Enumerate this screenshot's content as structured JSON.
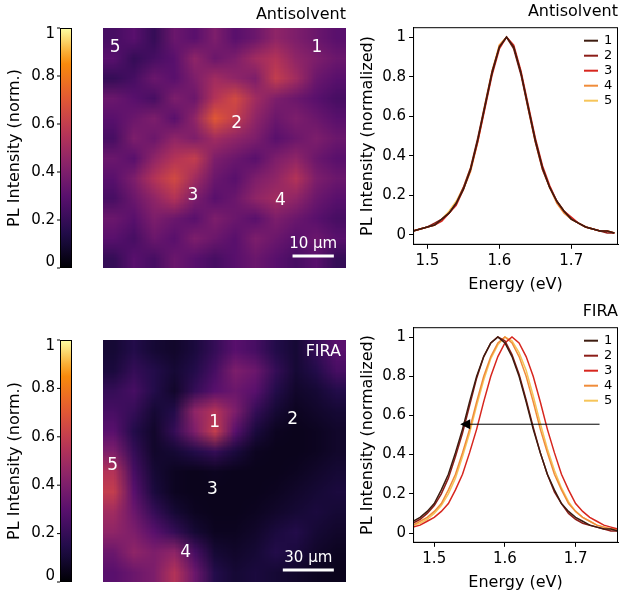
{
  "chart_data": [
    {
      "type": "heatmap",
      "title": "Antisolvent",
      "cells": [
        [
          0.25,
          0.3,
          0.2,
          0.35,
          0.3,
          0.4,
          0.3,
          0.35,
          0.45,
          0.4,
          0.35,
          0.3
        ],
        [
          0.3,
          0.2,
          0.25,
          0.3,
          0.45,
          0.35,
          0.4,
          0.5,
          0.55,
          0.45,
          0.4,
          0.35
        ],
        [
          0.2,
          0.25,
          0.35,
          0.3,
          0.4,
          0.5,
          0.45,
          0.4,
          0.6,
          0.5,
          0.35,
          0.3
        ],
        [
          0.35,
          0.3,
          0.25,
          0.4,
          0.35,
          0.55,
          0.65,
          0.5,
          0.4,
          0.35,
          0.3,
          0.25
        ],
        [
          0.3,
          0.35,
          0.4,
          0.3,
          0.45,
          0.7,
          0.6,
          0.45,
          0.35,
          0.4,
          0.35,
          0.3
        ],
        [
          0.25,
          0.4,
          0.35,
          0.45,
          0.4,
          0.5,
          0.45,
          0.4,
          0.3,
          0.35,
          0.4,
          0.35
        ],
        [
          0.35,
          0.3,
          0.45,
          0.55,
          0.6,
          0.4,
          0.35,
          0.3,
          0.4,
          0.45,
          0.35,
          0.3
        ],
        [
          0.3,
          0.4,
          0.55,
          0.65,
          0.5,
          0.35,
          0.3,
          0.4,
          0.45,
          0.55,
          0.4,
          0.35
        ],
        [
          0.25,
          0.35,
          0.45,
          0.55,
          0.4,
          0.3,
          0.35,
          0.45,
          0.5,
          0.45,
          0.35,
          0.3
        ],
        [
          0.35,
          0.3,
          0.4,
          0.35,
          0.3,
          0.4,
          0.35,
          0.3,
          0.4,
          0.35,
          0.3,
          0.25
        ],
        [
          0.3,
          0.25,
          0.35,
          0.3,
          0.4,
          0.35,
          0.3,
          0.4,
          0.35,
          0.3,
          0.35,
          0.3
        ],
        [
          0.2,
          0.3,
          0.25,
          0.35,
          0.3,
          0.25,
          0.3,
          0.35,
          0.3,
          0.25,
          0.3,
          0.2
        ]
      ],
      "colorbar": {
        "label": "PL Intensity (norm.)",
        "range": [
          0,
          1
        ],
        "ticks": [
          0,
          0.2,
          0.4,
          0.6,
          0.8,
          1
        ]
      },
      "annotations": [
        "1",
        "2",
        "3",
        "4",
        "5"
      ],
      "scale_bar": "10 μm"
    },
    {
      "type": "line",
      "title": "Antisolvent",
      "x_label": "Energy (eV)",
      "y_label": "PL Intensity (normalized)",
      "x": [
        1.48,
        1.49,
        1.5,
        1.51,
        1.52,
        1.53,
        1.54,
        1.55,
        1.56,
        1.57,
        1.58,
        1.59,
        1.6,
        1.61,
        1.62,
        1.63,
        1.64,
        1.65,
        1.66,
        1.67,
        1.68,
        1.69,
        1.7,
        1.71,
        1.72,
        1.73,
        1.74,
        1.75,
        1.76
      ],
      "series": [
        {
          "name": "1",
          "color": "#3d1c10",
          "values": [
            0.02,
            0.03,
            0.04,
            0.05,
            0.08,
            0.11,
            0.16,
            0.23,
            0.33,
            0.48,
            0.65,
            0.82,
            0.95,
            1.0,
            0.95,
            0.82,
            0.65,
            0.48,
            0.34,
            0.24,
            0.17,
            0.12,
            0.08,
            0.06,
            0.04,
            0.03,
            0.02,
            0.02,
            0.01
          ]
        },
        {
          "name": "2",
          "color": "#8c1d18",
          "values": [
            0.02,
            0.03,
            0.04,
            0.06,
            0.08,
            0.11,
            0.16,
            0.24,
            0.34,
            0.49,
            0.66,
            0.83,
            0.95,
            1.0,
            0.94,
            0.81,
            0.64,
            0.47,
            0.33,
            0.24,
            0.17,
            0.12,
            0.08,
            0.06,
            0.04,
            0.03,
            0.02,
            0.01,
            0.01
          ]
        },
        {
          "name": "3",
          "color": "#d7261e",
          "values": [
            0.02,
            0.03,
            0.04,
            0.05,
            0.07,
            0.11,
            0.15,
            0.23,
            0.33,
            0.47,
            0.64,
            0.81,
            0.94,
            1.0,
            0.96,
            0.83,
            0.66,
            0.49,
            0.35,
            0.25,
            0.17,
            0.12,
            0.09,
            0.06,
            0.04,
            0.03,
            0.02,
            0.02,
            0.01
          ]
        },
        {
          "name": "4",
          "color": "#f08c3a",
          "values": [
            0.02,
            0.03,
            0.04,
            0.05,
            0.08,
            0.11,
            0.16,
            0.23,
            0.32,
            0.47,
            0.65,
            0.82,
            0.96,
            1.0,
            0.95,
            0.82,
            0.64,
            0.47,
            0.33,
            0.24,
            0.16,
            0.11,
            0.08,
            0.06,
            0.04,
            0.03,
            0.02,
            0.02,
            0.01
          ]
        },
        {
          "name": "5",
          "color": "#f6c55a",
          "values": [
            0.02,
            0.03,
            0.04,
            0.05,
            0.08,
            0.12,
            0.17,
            0.24,
            0.34,
            0.48,
            0.66,
            0.83,
            0.96,
            1.0,
            0.95,
            0.82,
            0.65,
            0.48,
            0.34,
            0.24,
            0.17,
            0.12,
            0.08,
            0.06,
            0.04,
            0.03,
            0.02,
            0.02,
            0.01
          ]
        }
      ],
      "xlim": [
        1.48,
        1.765
      ],
      "xticks": [
        1.5,
        1.6,
        1.7
      ],
      "ylim": [
        -0.05,
        1.05
      ],
      "yticks": [
        0,
        0.2,
        0.4,
        0.6,
        0.8,
        1
      ],
      "grid": false,
      "legend": "upper right"
    },
    {
      "type": "heatmap",
      "title": "FIRA",
      "cells": [
        [
          0.1,
          0.15,
          0.1,
          0.08,
          0.12,
          0.2,
          0.3,
          0.25,
          0.15,
          0.1,
          0.2,
          0.3
        ],
        [
          0.12,
          0.2,
          0.15,
          0.1,
          0.15,
          0.25,
          0.4,
          0.35,
          0.2,
          0.1,
          0.15,
          0.25
        ],
        [
          0.2,
          0.25,
          0.15,
          0.08,
          0.2,
          0.3,
          0.35,
          0.3,
          0.15,
          0.08,
          0.1,
          0.15
        ],
        [
          0.25,
          0.2,
          0.1,
          0.15,
          0.45,
          0.55,
          0.4,
          0.2,
          0.1,
          0.06,
          0.08,
          0.1
        ],
        [
          0.3,
          0.15,
          0.08,
          0.2,
          0.4,
          0.6,
          0.3,
          0.12,
          0.06,
          0.05,
          0.06,
          0.08
        ],
        [
          0.4,
          0.2,
          0.08,
          0.1,
          0.15,
          0.2,
          0.12,
          0.06,
          0.05,
          0.05,
          0.06,
          0.08
        ],
        [
          0.55,
          0.25,
          0.1,
          0.06,
          0.05,
          0.06,
          0.05,
          0.05,
          0.05,
          0.06,
          0.08,
          0.1
        ],
        [
          0.6,
          0.3,
          0.12,
          0.06,
          0.05,
          0.05,
          0.05,
          0.05,
          0.06,
          0.08,
          0.1,
          0.12
        ],
        [
          0.5,
          0.35,
          0.2,
          0.1,
          0.06,
          0.05,
          0.05,
          0.06,
          0.08,
          0.1,
          0.12,
          0.1
        ],
        [
          0.45,
          0.4,
          0.3,
          0.2,
          0.1,
          0.06,
          0.06,
          0.08,
          0.12,
          0.15,
          0.1,
          0.08
        ],
        [
          0.35,
          0.45,
          0.4,
          0.45,
          0.25,
          0.1,
          0.08,
          0.1,
          0.15,
          0.12,
          0.08,
          0.06
        ],
        [
          0.3,
          0.35,
          0.4,
          0.55,
          0.35,
          0.15,
          0.1,
          0.12,
          0.1,
          0.08,
          0.06,
          0.05
        ]
      ],
      "colorbar": {
        "label": "PL Intensity (norm.)",
        "range": [
          0,
          1
        ],
        "ticks": [
          0,
          0.2,
          0.4,
          0.6,
          0.8,
          1
        ]
      },
      "annotations": [
        "1",
        "2",
        "3",
        "4",
        "5"
      ],
      "scale_bar": "30 μm"
    },
    {
      "type": "line",
      "title": "FIRA",
      "x_label": "Energy (eV)",
      "y_label": "PL Intensity (normalized)",
      "x": [
        1.47,
        1.48,
        1.49,
        1.5,
        1.51,
        1.52,
        1.53,
        1.54,
        1.55,
        1.56,
        1.57,
        1.58,
        1.59,
        1.6,
        1.61,
        1.62,
        1.63,
        1.64,
        1.65,
        1.66,
        1.67,
        1.68,
        1.69,
        1.7,
        1.71,
        1.72,
        1.73,
        1.74,
        1.75,
        1.76
      ],
      "series": [
        {
          "name": "1",
          "color": "#3d1c10",
          "values": [
            0.06,
            0.08,
            0.11,
            0.15,
            0.22,
            0.3,
            0.41,
            0.53,
            0.67,
            0.8,
            0.9,
            0.97,
            1.0,
            0.97,
            0.9,
            0.8,
            0.67,
            0.53,
            0.41,
            0.3,
            0.22,
            0.15,
            0.11,
            0.08,
            0.06,
            0.04,
            0.03,
            0.02,
            0.02,
            0.01
          ]
        },
        {
          "name": "2",
          "color": "#8c1d18",
          "values": [
            0.05,
            0.07,
            0.1,
            0.14,
            0.2,
            0.28,
            0.39,
            0.51,
            0.65,
            0.79,
            0.9,
            0.97,
            1.0,
            0.98,
            0.91,
            0.81,
            0.68,
            0.54,
            0.41,
            0.3,
            0.21,
            0.15,
            0.1,
            0.07,
            0.05,
            0.04,
            0.03,
            0.02,
            0.01,
            0.01
          ]
        },
        {
          "name": "3",
          "color": "#d7261e",
          "values": [
            0.03,
            0.04,
            0.06,
            0.08,
            0.11,
            0.15,
            0.22,
            0.3,
            0.41,
            0.53,
            0.67,
            0.8,
            0.9,
            0.97,
            1.0,
            0.97,
            0.9,
            0.8,
            0.67,
            0.53,
            0.41,
            0.3,
            0.22,
            0.15,
            0.11,
            0.08,
            0.06,
            0.04,
            0.03,
            0.02
          ]
        },
        {
          "name": "4",
          "color": "#f08c3a",
          "values": [
            0.04,
            0.06,
            0.08,
            0.11,
            0.15,
            0.22,
            0.3,
            0.41,
            0.53,
            0.67,
            0.8,
            0.9,
            0.97,
            1.0,
            0.97,
            0.9,
            0.8,
            0.67,
            0.53,
            0.41,
            0.3,
            0.22,
            0.15,
            0.11,
            0.08,
            0.06,
            0.04,
            0.03,
            0.02,
            0.02
          ]
        },
        {
          "name": "5",
          "color": "#f6c55a",
          "values": [
            0.04,
            0.05,
            0.07,
            0.1,
            0.14,
            0.2,
            0.28,
            0.39,
            0.51,
            0.65,
            0.78,
            0.89,
            0.96,
            1.0,
            0.98,
            0.92,
            0.83,
            0.7,
            0.56,
            0.43,
            0.32,
            0.23,
            0.16,
            0.11,
            0.08,
            0.06,
            0.04,
            0.03,
            0.02,
            0.02
          ]
        }
      ],
      "xlim": [
        1.47,
        1.76
      ],
      "xticks": [
        1.5,
        1.6,
        1.7
      ],
      "ylim": [
        -0.05,
        1.05
      ],
      "yticks": [
        0,
        0.2,
        0.4,
        0.6,
        0.8,
        1
      ],
      "grid": false,
      "legend": "upper right"
    }
  ]
}
